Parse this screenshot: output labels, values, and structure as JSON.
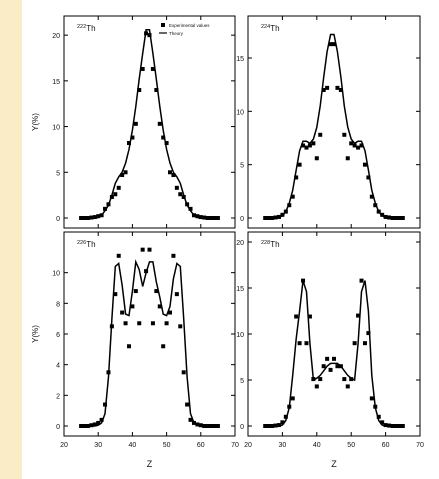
{
  "legend": {
    "experimental": "Experimental values",
    "theory": "Theory"
  },
  "axis_labels": {
    "y": "Y(%)",
    "x": "Z"
  },
  "chart_data": [
    {
      "type": "scatter",
      "nuclide_mass": "222",
      "nuclide_symbol": "Th",
      "xlim": [
        20,
        70
      ],
      "ylim": [
        0,
        21
      ],
      "xticks": [
        20,
        30,
        40,
        50,
        60,
        70
      ],
      "yticks": [
        0,
        5,
        10,
        15,
        20
      ],
      "show_legend": true,
      "series": [
        {
          "name": "Experimental values",
          "kind": "points",
          "x": [
            25,
            26,
            27,
            28,
            29,
            30,
            31,
            32,
            33,
            34,
            35,
            36,
            37,
            38,
            39,
            40,
            41,
            42,
            43,
            44,
            45,
            46,
            47,
            48,
            49,
            50,
            51,
            52,
            53,
            54,
            55,
            56,
            57,
            58,
            59,
            60,
            61,
            62,
            63,
            64,
            65
          ],
          "y": [
            0.0,
            0.0,
            0.0,
            0.05,
            0.1,
            0.2,
            0.3,
            1.0,
            1.5,
            2.3,
            2.6,
            3.3,
            4.7,
            5.0,
            8.2,
            8.8,
            10.3,
            14.0,
            16.3,
            20.2,
            20.0,
            16.3,
            14.0,
            10.3,
            8.8,
            8.2,
            5.0,
            4.7,
            3.3,
            2.6,
            2.3,
            1.5,
            1.0,
            0.3,
            0.2,
            0.1,
            0.05,
            0.0,
            0.0,
            0.0,
            0.0
          ]
        },
        {
          "name": "Theory",
          "kind": "line",
          "x": [
            25,
            26,
            27,
            28,
            29,
            30,
            31,
            32,
            33,
            34,
            35,
            36,
            37,
            38,
            39,
            40,
            41,
            42,
            43,
            44,
            45,
            46,
            47,
            48,
            49,
            50,
            51,
            52,
            53,
            54,
            55,
            56,
            57,
            58,
            59,
            60,
            61,
            62,
            63,
            64,
            65
          ],
          "y": [
            0,
            0,
            0,
            0,
            0,
            0.05,
            0.3,
            0.8,
            1.4,
            2.5,
            3.8,
            4.5,
            5.0,
            6.0,
            7.5,
            9.6,
            12.2,
            15.2,
            18.0,
            20.6,
            20.6,
            18.0,
            15.2,
            12.2,
            9.6,
            7.5,
            6.0,
            5.0,
            4.5,
            3.8,
            2.5,
            1.4,
            0.8,
            0.3,
            0.05,
            0,
            0,
            0,
            0,
            0,
            0
          ]
        }
      ]
    },
    {
      "type": "scatter",
      "nuclide_mass": "224",
      "nuclide_symbol": "Th",
      "xlim": [
        20,
        70
      ],
      "ylim": [
        0,
        18
      ],
      "xticks": [
        20,
        30,
        40,
        50,
        60,
        70
      ],
      "yticks": [
        0,
        5,
        10,
        15
      ],
      "show_legend": false,
      "series": [
        {
          "name": "Experimental values",
          "kind": "points",
          "x": [
            25,
            26,
            27,
            28,
            29,
            30,
            31,
            32,
            33,
            34,
            35,
            36,
            37,
            38,
            39,
            40,
            41,
            42,
            43,
            44,
            45,
            46,
            47,
            48,
            49,
            50,
            51,
            52,
            53,
            54,
            55,
            56,
            57,
            58,
            59,
            60,
            61,
            62,
            63,
            64,
            65
          ],
          "y": [
            0,
            0,
            0,
            0.05,
            0.1,
            0.3,
            0.6,
            1.2,
            2.0,
            3.8,
            5.0,
            6.8,
            6.6,
            6.8,
            7.0,
            5.6,
            7.8,
            12.0,
            12.2,
            16.3,
            16.3,
            12.2,
            12.0,
            7.8,
            5.6,
            7.0,
            6.8,
            6.6,
            6.8,
            5.0,
            3.8,
            2.0,
            1.2,
            0.6,
            0.3,
            0.1,
            0.05,
            0,
            0,
            0,
            0
          ]
        },
        {
          "name": "Theory",
          "kind": "line",
          "x": [
            25,
            26,
            27,
            28,
            29,
            30,
            31,
            32,
            33,
            34,
            35,
            36,
            37,
            38,
            39,
            40,
            41,
            42,
            43,
            44,
            45,
            46,
            47,
            48,
            49,
            50,
            51,
            52,
            53,
            54,
            55,
            56,
            57,
            58,
            59,
            60,
            61,
            62,
            63,
            64,
            65
          ],
          "y": [
            0,
            0,
            0,
            0,
            0.05,
            0.2,
            0.6,
            1.4,
            2.6,
            4.5,
            6.3,
            7.2,
            7.2,
            7.0,
            7.4,
            8.5,
            10.5,
            13.2,
            15.6,
            17.2,
            17.2,
            15.6,
            13.2,
            10.5,
            8.5,
            7.4,
            7.0,
            7.2,
            7.2,
            6.3,
            4.5,
            2.6,
            1.4,
            0.6,
            0.2,
            0.05,
            0,
            0,
            0,
            0,
            0
          ]
        }
      ]
    },
    {
      "type": "scatter",
      "nuclide_mass": "226",
      "nuclide_symbol": "Th",
      "xlim": [
        20,
        70
      ],
      "ylim": [
        0,
        12
      ],
      "xticks": [
        20,
        30,
        40,
        50,
        60,
        70
      ],
      "yticks": [
        0,
        2,
        4,
        6,
        8,
        10
      ],
      "show_legend": false,
      "series": [
        {
          "name": "Experimental values",
          "kind": "points",
          "x": [
            25,
            26,
            27,
            28,
            29,
            30,
            31,
            32,
            33,
            34,
            35,
            36,
            37,
            38,
            39,
            40,
            41,
            42,
            43,
            44,
            45,
            46,
            47,
            48,
            49,
            50,
            51,
            52,
            53,
            54,
            55,
            56,
            57,
            58,
            59,
            60,
            61,
            62,
            63,
            64,
            65
          ],
          "y": [
            0,
            0,
            0,
            0.05,
            0.1,
            0.2,
            0.4,
            1.4,
            3.5,
            6.5,
            8.6,
            11.1,
            7.4,
            6.7,
            5.2,
            7.8,
            8.8,
            6.7,
            11.5,
            10.1,
            11.5,
            6.7,
            8.8,
            7.8,
            5.2,
            6.7,
            7.4,
            11.1,
            8.6,
            6.5,
            3.5,
            1.4,
            0.4,
            0.2,
            0.1,
            0.05,
            0,
            0,
            0,
            0,
            0
          ]
        },
        {
          "name": "Theory",
          "kind": "line",
          "x": [
            25,
            26,
            27,
            28,
            29,
            30,
            31,
            32,
            33,
            34,
            35,
            36,
            37,
            38,
            39,
            40,
            41,
            42,
            43,
            44,
            45,
            46,
            47,
            48,
            49,
            50,
            51,
            52,
            53,
            54,
            55,
            56,
            57,
            58,
            59,
            60,
            61,
            62,
            63,
            64,
            65
          ],
          "y": [
            0,
            0,
            0,
            0,
            0,
            0.05,
            0.2,
            0.8,
            3.2,
            7.0,
            10.4,
            10.6,
            9.2,
            7.3,
            7.2,
            8.8,
            10.7,
            10.2,
            9.1,
            10.0,
            10.7,
            10.7,
            9.4,
            8.4,
            7.3,
            7.2,
            7.8,
            9.6,
            10.6,
            10.4,
            7.0,
            3.2,
            0.8,
            0.2,
            0.05,
            0,
            0,
            0,
            0,
            0,
            0
          ]
        }
      ]
    },
    {
      "type": "scatter",
      "nuclide_mass": "228",
      "nuclide_symbol": "Th",
      "xlim": [
        20,
        70
      ],
      "ylim": [
        0,
        20
      ],
      "xticks": [
        20,
        30,
        40,
        50,
        60,
        70
      ],
      "yticks": [
        0,
        5,
        10,
        15,
        20
      ],
      "show_legend": false,
      "series": [
        {
          "name": "Experimental values",
          "kind": "points",
          "x": [
            25,
            26,
            27,
            28,
            29,
            30,
            31,
            32,
            33,
            34,
            35,
            36,
            37,
            38,
            39,
            40,
            41,
            42,
            43,
            44,
            45,
            46,
            47,
            48,
            49,
            50,
            51,
            52,
            53,
            54,
            55,
            56,
            57,
            58,
            59,
            60,
            61,
            62,
            63,
            64,
            65
          ],
          "y": [
            0,
            0,
            0,
            0.05,
            0.1,
            0.4,
            1.0,
            2.1,
            3.0,
            11.9,
            9.0,
            15.8,
            9.0,
            11.9,
            5.1,
            4.3,
            5.1,
            6.5,
            7.3,
            6.1,
            7.3,
            6.5,
            6.5,
            5.1,
            4.3,
            5.1,
            9.0,
            12.0,
            15.8,
            9.0,
            10.1,
            3.0,
            2.1,
            1.0,
            0.4,
            0.1,
            0.05,
            0,
            0,
            0,
            0
          ]
        },
        {
          "name": "Theory",
          "kind": "line",
          "x": [
            25,
            26,
            27,
            28,
            29,
            30,
            31,
            32,
            33,
            34,
            35,
            36,
            37,
            38,
            39,
            40,
            41,
            42,
            43,
            44,
            45,
            46,
            47,
            48,
            49,
            50,
            51,
            52,
            53,
            54,
            55,
            56,
            57,
            58,
            59,
            60,
            61,
            62,
            63,
            64,
            65
          ],
          "y": [
            0,
            0,
            0,
            0,
            0,
            0.1,
            0.6,
            2.0,
            5.5,
            9.5,
            12.5,
            15.8,
            14.6,
            9.0,
            5.0,
            5.2,
            5.5,
            6.0,
            6.5,
            6.8,
            6.8,
            6.8,
            6.5,
            6.0,
            5.5,
            5.2,
            5.0,
            9.0,
            14.6,
            15.8,
            12.5,
            5.5,
            2.0,
            0.6,
            0.1,
            0,
            0,
            0,
            0,
            0,
            0
          ]
        }
      ]
    }
  ]
}
